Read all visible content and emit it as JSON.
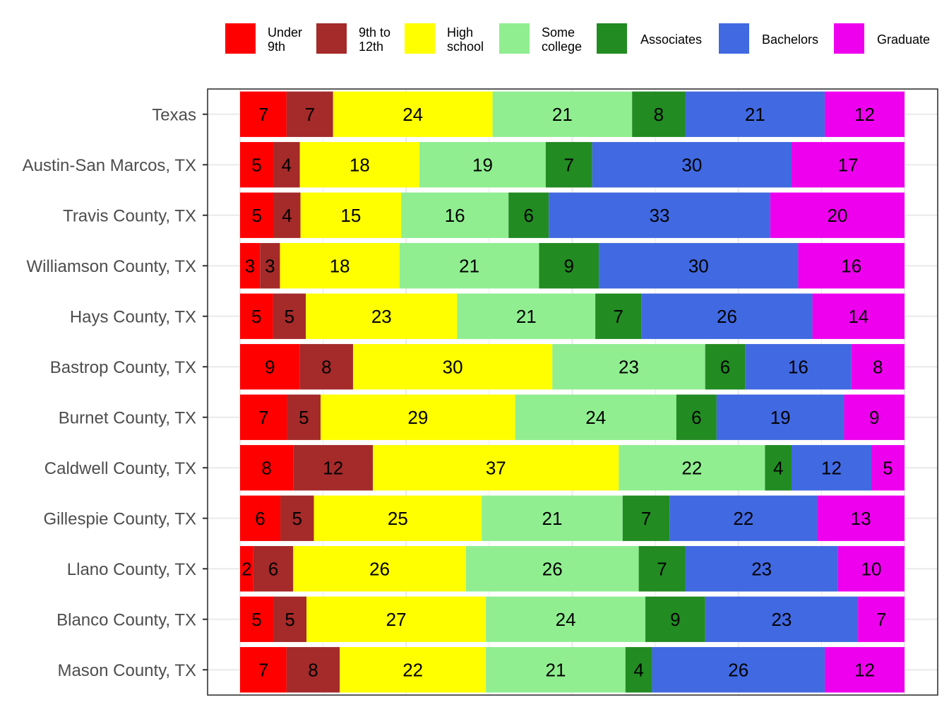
{
  "chart_data": {
    "type": "bar",
    "orientation": "horizontal",
    "stacked": true,
    "normalized": true,
    "title": "",
    "xlabel": "",
    "ylabel": "",
    "grid": true,
    "legend_position": "top",
    "categories": [
      "Texas",
      "Austin-San Marcos, TX",
      "Travis County, TX",
      "Williamson County, TX",
      "Hays County, TX",
      "Bastrop County, TX",
      "Burnet County, TX",
      "Caldwell County, TX",
      "Gillespie County, TX",
      "Llano County, TX",
      "Blanco County, TX",
      "Mason County, TX"
    ],
    "series": [
      {
        "name": "Under 9th",
        "legend_lines": [
          "Under",
          "9th"
        ],
        "color": "#ff0000",
        "values": [
          7,
          5,
          5,
          3,
          5,
          9,
          7,
          8,
          6,
          2,
          5,
          7
        ]
      },
      {
        "name": "9th to 12th",
        "legend_lines": [
          "9th to",
          "12th"
        ],
        "color": "#a52a2a",
        "values": [
          7,
          4,
          4,
          3,
          5,
          8,
          5,
          12,
          5,
          6,
          5,
          8
        ]
      },
      {
        "name": "High school",
        "legend_lines": [
          "High",
          "school"
        ],
        "color": "#ffff00",
        "values": [
          24,
          18,
          15,
          18,
          23,
          30,
          29,
          37,
          25,
          26,
          27,
          22
        ]
      },
      {
        "name": "Some college",
        "legend_lines": [
          "Some",
          "college"
        ],
        "color": "#90ee90",
        "values": [
          21,
          19,
          16,
          21,
          21,
          23,
          24,
          22,
          21,
          26,
          24,
          21
        ]
      },
      {
        "name": "Associates",
        "legend_lines": [
          "Associates"
        ],
        "color": "#228b22",
        "values": [
          8,
          7,
          6,
          9,
          7,
          6,
          6,
          4,
          7,
          7,
          9,
          4
        ]
      },
      {
        "name": "Bachelors",
        "legend_lines": [
          "Bachelors"
        ],
        "color": "#4169e1",
        "values": [
          21,
          30,
          33,
          30,
          26,
          16,
          19,
          12,
          22,
          23,
          23,
          26
        ]
      },
      {
        "name": "Graduate",
        "legend_lines": [
          "Graduate"
        ],
        "color": "#ee00ee",
        "values": [
          12,
          17,
          20,
          16,
          14,
          8,
          9,
          5,
          13,
          10,
          7,
          12
        ]
      }
    ]
  }
}
